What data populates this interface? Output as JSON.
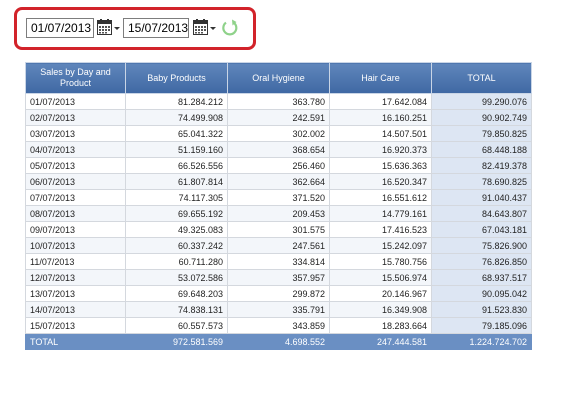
{
  "filters": {
    "date_from": "01/07/2013",
    "date_to": "15/07/2013",
    "calendar_icon": "calendar-icon",
    "refresh_icon": "refresh-icon"
  },
  "colors": {
    "highlight_frame": "#d2232a",
    "header_bg": "#4d75ad",
    "total_col_bg": "#dde6f3",
    "footer_bg": "#6a8fc3",
    "refresh": "#8fd28a"
  },
  "table": {
    "columns": [
      "Sales by Day and Product",
      "Baby Products",
      "Oral Hygiene",
      "Hair Care",
      "TOTAL"
    ],
    "rows": [
      [
        "01/07/2013",
        "81.284.212",
        "363.780",
        "17.642.084",
        "99.290.076"
      ],
      [
        "02/07/2013",
        "74.499.908",
        "242.591",
        "16.160.251",
        "90.902.749"
      ],
      [
        "03/07/2013",
        "65.041.322",
        "302.002",
        "14.507.501",
        "79.850.825"
      ],
      [
        "04/07/2013",
        "51.159.160",
        "368.654",
        "16.920.373",
        "68.448.188"
      ],
      [
        "05/07/2013",
        "66.526.556",
        "256.460",
        "15.636.363",
        "82.419.378"
      ],
      [
        "06/07/2013",
        "61.807.814",
        "362.664",
        "16.520.347",
        "78.690.825"
      ],
      [
        "07/07/2013",
        "74.117.305",
        "371.520",
        "16.551.612",
        "91.040.437"
      ],
      [
        "08/07/2013",
        "69.655.192",
        "209.453",
        "14.779.161",
        "84.643.807"
      ],
      [
        "09/07/2013",
        "49.325.083",
        "301.575",
        "17.416.523",
        "67.043.181"
      ],
      [
        "10/07/2013",
        "60.337.242",
        "247.561",
        "15.242.097",
        "75.826.900"
      ],
      [
        "11/07/2013",
        "60.711.280",
        "334.814",
        "15.780.756",
        "76.826.850"
      ],
      [
        "12/07/2013",
        "53.072.586",
        "357.957",
        "15.506.974",
        "68.937.517"
      ],
      [
        "13/07/2013",
        "69.648.203",
        "299.872",
        "20.146.967",
        "90.095.042"
      ],
      [
        "14/07/2013",
        "74.838.131",
        "335.791",
        "16.349.908",
        "91.523.830"
      ],
      [
        "15/07/2013",
        "60.557.573",
        "343.859",
        "18.283.664",
        "79.185.096"
      ]
    ],
    "footer": [
      "TOTAL",
      "972.581.569",
      "4.698.552",
      "247.444.581",
      "1.224.724.702"
    ]
  }
}
